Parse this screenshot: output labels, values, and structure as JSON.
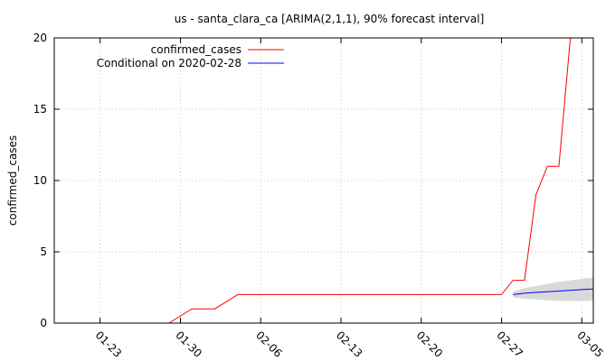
{
  "chart_data": {
    "type": "line",
    "title": "us - santa_clara_ca [ARIMA(2,1,1), 90% forecast interval]",
    "xlabel": "",
    "ylabel": "confirmed_cases",
    "ylim": [
      0,
      20
    ],
    "yticks": [
      0,
      5,
      10,
      15,
      20
    ],
    "xlim": [
      "2020-01-19",
      "2020-03-06"
    ],
    "xticks": [
      "2020-01-23",
      "2020-01-30",
      "2020-02-06",
      "2020-02-13",
      "2020-02-20",
      "2020-02-27",
      "2020-03-05"
    ],
    "xtick_labels": [
      "01-23",
      "01-30",
      "02-06",
      "02-13",
      "02-20",
      "02-27",
      "03-05"
    ],
    "grid": true,
    "legend_position": "top-left",
    "series": [
      {
        "name": "confirmed_cases",
        "color": "#ff0000",
        "x": [
          "2020-01-29",
          "2020-01-31",
          "2020-02-01",
          "2020-02-02",
          "2020-02-03",
          "2020-02-04",
          "2020-02-27",
          "2020-02-28",
          "2020-02-29",
          "2020-03-01",
          "2020-03-02",
          "2020-03-03",
          "2020-03-04",
          "2020-03-05"
        ],
        "y": [
          0,
          1,
          1,
          1,
          1.5,
          2,
          2,
          3,
          3,
          9,
          11,
          11,
          20,
          20
        ]
      },
      {
        "name": "Conditional on 2020-02-28",
        "color": "#0000ff",
        "x": [
          "2020-02-28",
          "2020-02-29",
          "2020-03-01",
          "2020-03-02",
          "2020-03-03",
          "2020-03-04",
          "2020-03-05",
          "2020-03-06"
        ],
        "y": [
          2.0,
          2.1,
          2.15,
          2.2,
          2.25,
          2.3,
          2.35,
          2.4
        ],
        "interval_lower": [
          1.8,
          1.7,
          1.65,
          1.6,
          1.55,
          1.55,
          1.55,
          1.55
        ],
        "interval_upper": [
          2.2,
          2.45,
          2.6,
          2.75,
          2.9,
          3.0,
          3.1,
          3.2
        ],
        "interval_color": "#d9d9d9"
      }
    ]
  }
}
